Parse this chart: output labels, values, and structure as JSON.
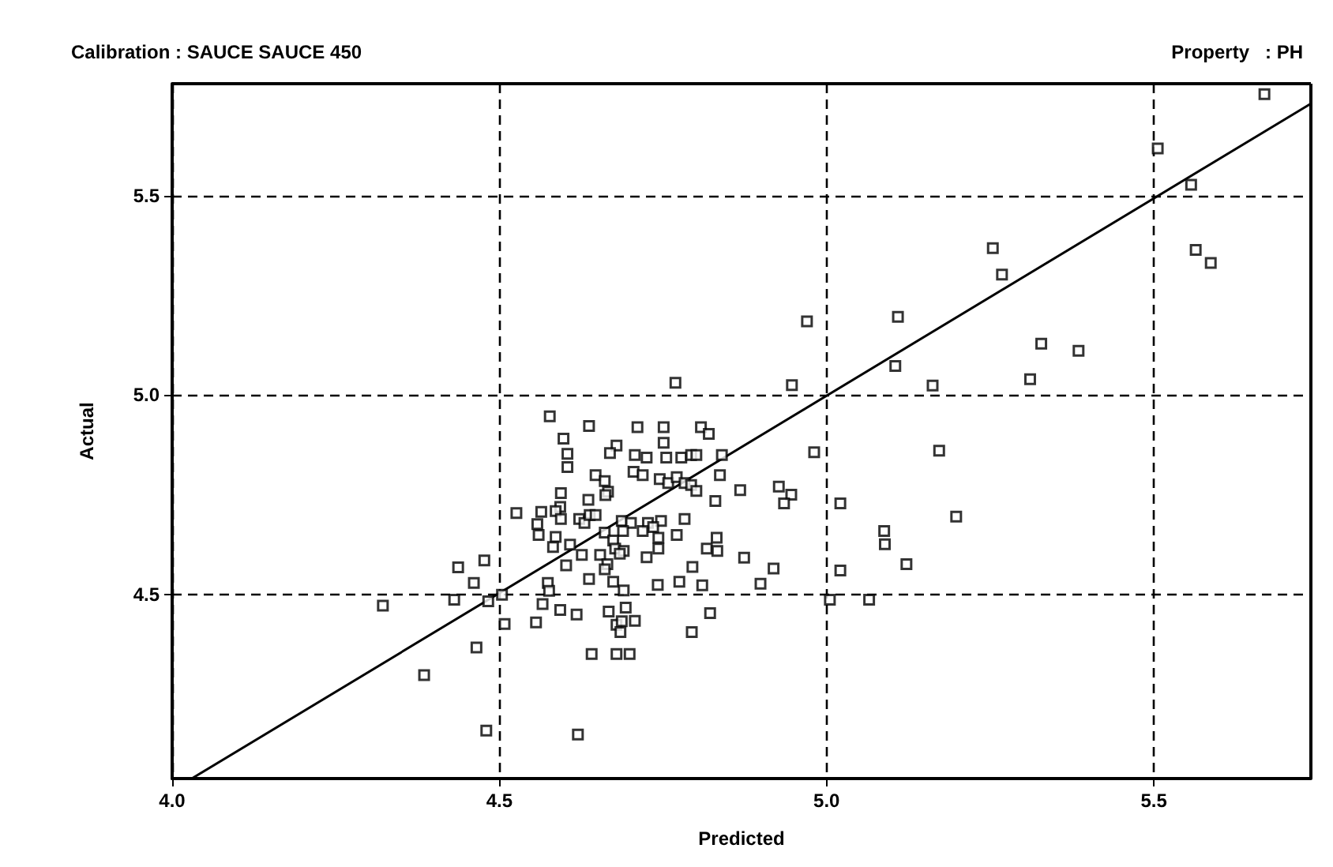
{
  "chart_data": {
    "type": "scatter",
    "title": "Calibration : SAUCE SAUCE 450",
    "subtitle": "Property   : PH",
    "xlabel": "Predicted",
    "ylabel": "Actual",
    "xlim": [
      4.0,
      5.74
    ],
    "ylim": [
      4.04,
      5.78
    ],
    "xticks": [
      {
        "value": 4,
        "label": "4.0"
      },
      {
        "value": 4.5,
        "label": "4.5"
      },
      {
        "value": 5,
        "label": "5.0"
      },
      {
        "value": 5.5,
        "label": "5.5"
      }
    ],
    "yticks": [
      {
        "value": 4.5,
        "label": "4.5"
      },
      {
        "value": 5,
        "label": "5.0"
      },
      {
        "value": 5.5,
        "label": "5.5"
      }
    ],
    "grid": true,
    "marker": "square",
    "series": [
      {
        "color": "#000000",
        "x": [
          4.577,
          4.637,
          4.711,
          4.808,
          4.82,
          4.598,
          4.679,
          4.669,
          4.604,
          4.751,
          4.707,
          4.725,
          4.755,
          4.778,
          4.793,
          4.801,
          4.84,
          4.604,
          4.705,
          4.719,
          4.647,
          4.661,
          4.745,
          4.758,
          4.771,
          4.783,
          4.793,
          4.801,
          4.666,
          4.662,
          4.837,
          4.83,
          4.594,
          4.636,
          4.526,
          4.564,
          4.593,
          4.586,
          4.594,
          4.622,
          4.63,
          4.638,
          4.647,
          4.558,
          4.56,
          4.687,
          4.701,
          4.689,
          4.727,
          4.747,
          4.735,
          4.743,
          4.719,
          4.783,
          4.661,
          4.771,
          4.586,
          4.582,
          4.608,
          4.674,
          4.677,
          4.69,
          4.684,
          4.743,
          4.725,
          4.654,
          4.665,
          4.661,
          4.626,
          4.602,
          4.832,
          4.817,
          4.833,
          4.795,
          4.637,
          4.674,
          4.69,
          4.574,
          4.576,
          4.742,
          4.775,
          4.81,
          4.437,
          4.477,
          4.461,
          4.431,
          4.483,
          4.504,
          4.322,
          4.566,
          4.593,
          4.618,
          4.667,
          4.693,
          4.508,
          4.556,
          4.679,
          4.687,
          4.707,
          4.685,
          4.822,
          4.794,
          4.465,
          4.641,
          4.679,
          4.699,
          4.385,
          4.48,
          4.62,
          4.751,
          5.254,
          5.268,
          5.564,
          5.587,
          4.97,
          5.109,
          5.328,
          5.385,
          5.105,
          5.311,
          5.162,
          4.769,
          4.947,
          4.981,
          5.172,
          5.198,
          5.021,
          5.088,
          5.089,
          5.122,
          5.021,
          5.005,
          5.065,
          4.868,
          4.927,
          4.946,
          4.935,
          4.874,
          4.919,
          4.899,
          5.669,
          5.506,
          5.557
        ],
        "values": [
          4.947,
          4.923,
          4.92,
          4.92,
          4.903,
          4.891,
          4.874,
          4.855,
          4.853,
          4.881,
          4.85,
          4.844,
          4.844,
          4.844,
          4.85,
          4.85,
          4.85,
          4.82,
          4.808,
          4.8,
          4.8,
          4.785,
          4.79,
          4.78,
          4.795,
          4.78,
          4.775,
          4.76,
          4.758,
          4.75,
          4.8,
          4.735,
          4.755,
          4.738,
          4.705,
          4.708,
          4.72,
          4.71,
          4.69,
          4.69,
          4.68,
          4.7,
          4.7,
          4.677,
          4.65,
          4.685,
          4.68,
          4.66,
          4.68,
          4.685,
          4.67,
          4.643,
          4.66,
          4.69,
          4.656,
          4.65,
          4.645,
          4.62,
          4.626,
          4.636,
          4.616,
          4.61,
          4.603,
          4.616,
          4.594,
          4.6,
          4.577,
          4.564,
          4.6,
          4.574,
          4.643,
          4.616,
          4.61,
          4.57,
          4.54,
          4.533,
          4.511,
          4.53,
          4.51,
          4.525,
          4.533,
          4.524,
          4.569,
          4.586,
          4.53,
          4.488,
          4.484,
          4.5,
          4.473,
          4.477,
          4.462,
          4.451,
          4.458,
          4.468,
          4.427,
          4.431,
          4.425,
          4.434,
          4.435,
          4.407,
          4.454,
          4.407,
          4.368,
          4.352,
          4.352,
          4.352,
          4.299,
          4.16,
          4.15,
          4.92,
          5.368,
          5.302,
          5.364,
          5.331,
          5.185,
          5.196,
          5.129,
          5.111,
          5.073,
          5.04,
          5.024,
          5.031,
          5.025,
          4.857,
          4.861,
          4.696,
          4.729,
          4.66,
          4.627,
          4.577,
          4.561,
          4.488,
          4.488,
          4.762,
          4.771,
          4.751,
          4.729,
          4.593,
          4.566,
          4.528,
          5.754,
          5.618,
          5.527
        ]
      },
      {
        "type": "line",
        "color": "#000000",
        "marker": "none",
        "line_style": "solid",
        "x": [
          4.03,
          5.74
        ],
        "values": [
          4.04,
          5.73
        ]
      }
    ]
  }
}
